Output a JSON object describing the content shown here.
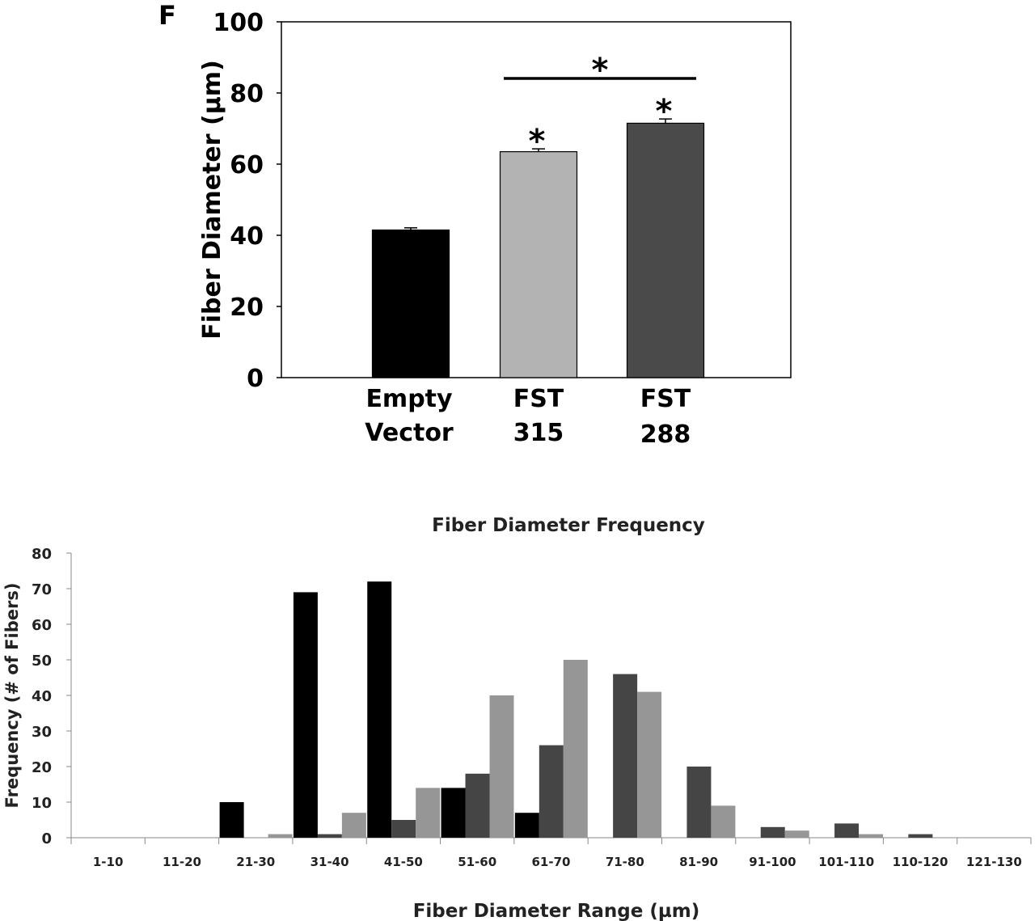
{
  "chart_data": [
    {
      "type": "bar",
      "panel_label": "F",
      "title": "",
      "xlabel": "",
      "ylabel": "Fiber Diameter (µm)",
      "ylim": [
        0,
        100
      ],
      "yticks": [
        "0",
        "20",
        "40",
        "60",
        "80",
        "100"
      ],
      "categories": [
        [
          "Empty",
          "Vector"
        ],
        [
          "FST",
          "315"
        ],
        [
          "FST",
          "288"
        ]
      ],
      "values": [
        41.5,
        63.5,
        71.5
      ],
      "errors": [
        0.6,
        0.8,
        1.2
      ],
      "colors": [
        "#000000",
        "#b3b3b3",
        "#4a4a4a"
      ],
      "annotations": {
        "bar_marks": [
          "",
          "*",
          "*"
        ],
        "bracket_mark": "*"
      }
    },
    {
      "type": "bar",
      "title": "Fiber Diameter Frequency",
      "xlabel": "Fiber Diameter Range (µm)",
      "ylabel": "Frequency (# of Fibers)",
      "ylim": [
        0,
        80
      ],
      "yticks": [
        "0",
        "10",
        "20",
        "30",
        "40",
        "50",
        "60",
        "70",
        "80"
      ],
      "categories": [
        "1-10",
        "11-20",
        "21-30",
        "31-40",
        "41-50",
        "51-60",
        "61-70",
        "71-80",
        "81-90",
        "91-100",
        "101-110",
        "110-120",
        "121-130"
      ],
      "series": [
        {
          "name": "Empty Vector",
          "color": "#000000",
          "values": [
            0,
            0,
            10,
            69,
            72,
            14,
            7,
            0,
            0,
            0,
            0,
            0,
            0
          ]
        },
        {
          "name": "FST 288",
          "color": "#454545",
          "values": [
            0,
            0,
            0,
            1,
            5,
            18,
            26,
            46,
            20,
            3,
            4,
            1,
            0
          ]
        },
        {
          "name": "FST 315",
          "color": "#969696",
          "values": [
            0,
            0,
            1,
            7,
            14,
            40,
            50,
            41,
            9,
            2,
            1,
            0,
            0
          ]
        }
      ],
      "grid": false,
      "legend": "none"
    }
  ]
}
